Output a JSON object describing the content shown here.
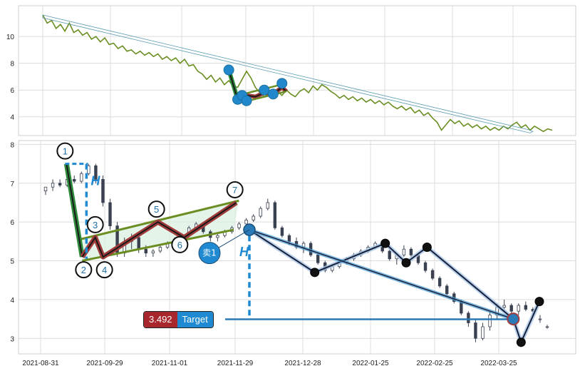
{
  "chart_data": [
    {
      "type": "line",
      "panel": "overview",
      "ylim": [
        2.6,
        12.3
      ],
      "yticks": [
        4,
        6,
        8,
        10
      ],
      "grid": true,
      "series": [
        {
          "color": "#6b8e23",
          "x": [
            0,
            2,
            4,
            6,
            8,
            10,
            12,
            14,
            16,
            18,
            20,
            22,
            24,
            26,
            28,
            30,
            32,
            34,
            36,
            38,
            40,
            42,
            44,
            46,
            48,
            50,
            52,
            54,
            56,
            58,
            60,
            62,
            64,
            66,
            68,
            70,
            72,
            74,
            76,
            78,
            80,
            82,
            84,
            86,
            88,
            90,
            92,
            94,
            96,
            98,
            100,
            102,
            104,
            106,
            108,
            110,
            112,
            114,
            116,
            118,
            120,
            122,
            124,
            126,
            128,
            130,
            132,
            134,
            136,
            138,
            140,
            142,
            144,
            146,
            148,
            150,
            152,
            154,
            156,
            158,
            160,
            162,
            164,
            166,
            168,
            170,
            172,
            174,
            176,
            178,
            180,
            182,
            184,
            186,
            188,
            190,
            192,
            194,
            196,
            198,
            200,
            202,
            204,
            206,
            208,
            210,
            212,
            214,
            216,
            218,
            220,
            222,
            224,
            226,
            228,
            230
          ],
          "y": [
            11.6,
            11.0,
            11.2,
            10.6,
            10.9,
            10.4,
            11.0,
            10.3,
            10.5,
            10.1,
            10.3,
            9.8,
            10.0,
            9.6,
            9.9,
            9.4,
            9.5,
            9.1,
            9.3,
            8.9,
            9.0,
            8.7,
            8.9,
            8.6,
            8.8,
            8.5,
            8.7,
            8.3,
            8.5,
            8.2,
            8.4,
            8.0,
            8.3,
            7.8,
            7.9,
            7.4,
            7.2,
            6.8,
            7.1,
            6.6,
            6.9,
            6.4,
            6.7,
            6.3,
            6.2,
            6.8,
            7.4,
            6.9,
            6.2,
            5.8,
            5.5,
            5.7,
            5.4,
            5.9,
            5.6,
            6.0,
            5.7,
            5.5,
            5.9,
            6.1,
            5.8,
            6.3,
            6.0,
            6.4,
            6.2,
            5.9,
            5.7,
            5.4,
            5.6,
            5.3,
            5.5,
            5.2,
            5.4,
            5.1,
            5.3,
            5.0,
            5.2,
            4.9,
            5.1,
            4.8,
            4.6,
            4.8,
            4.5,
            4.7,
            4.3,
            4.5,
            4.1,
            4.3,
            3.9,
            3.6,
            3.0,
            3.4,
            3.8,
            3.5,
            3.7,
            3.3,
            3.5,
            3.2,
            3.4,
            3.1,
            3.3,
            3.0,
            3.2,
            3.0,
            3.3,
            3.1,
            3.4,
            3.6,
            3.2,
            3.4,
            3.0,
            3.3,
            3.1,
            2.9,
            3.1,
            3.0
          ]
        }
      ],
      "annotations": [
        {
          "type": "trend_arrow",
          "from": [
            0,
            11.5
          ],
          "to": [
            220,
            2.9
          ],
          "color": "#5b9bb0"
        },
        {
          "type": "flag_pole",
          "points": [
            [
              84,
              7.5
            ],
            [
              88,
              5.3
            ]
          ],
          "color": "#1a1a1a"
        },
        {
          "type": "flag_body",
          "points": [
            [
              88,
              5.3
            ],
            [
              92,
              5.6
            ],
            [
              96,
              5.5
            ],
            [
              100,
              5.8
            ],
            [
              104,
              5.7
            ],
            [
              108,
              6.2
            ],
            [
              110,
              5.9
            ]
          ],
          "color": "#a23b3b"
        },
        {
          "type": "channel_lower",
          "points": [
            [
              88,
              5.0
            ],
            [
              110,
              5.9
            ]
          ],
          "color": "#6b8e23"
        },
        {
          "type": "channel_upper",
          "points": [
            [
              88,
              5.6
            ],
            [
              110,
              6.5
            ]
          ],
          "color": "#6b8e23"
        },
        {
          "type": "markers",
          "points": [
            [
              84,
              7.5
            ],
            [
              88,
              5.3
            ],
            [
              90,
              5.6
            ],
            [
              92,
              5.2
            ],
            [
              100,
              6.0
            ],
            [
              104,
              5.7
            ],
            [
              108,
              6.5
            ]
          ],
          "color": "#2288cc"
        }
      ]
    },
    {
      "type": "candlestick",
      "panel": "detail",
      "ylim": [
        2.6,
        8.1
      ],
      "yticks": [
        3,
        4,
        5,
        6,
        7,
        8
      ],
      "xticks": [
        "2021-08-31",
        "2021-09-29",
        "2021-11-01",
        "2021-11-29",
        "2021-12-28",
        "2022-01-25",
        "2022-02-25",
        "2022-03-25"
      ],
      "grid": true,
      "candles": [
        [
          6.8,
          6.9,
          6.7,
          6.9
        ],
        [
          6.9,
          7.1,
          6.8,
          7.0
        ],
        [
          7.0,
          7.1,
          6.9,
          6.95
        ],
        [
          6.95,
          7.2,
          6.9,
          7.1
        ],
        [
          7.1,
          7.2,
          7.0,
          7.05
        ],
        [
          7.05,
          7.3,
          7.0,
          7.25
        ],
        [
          7.25,
          7.5,
          7.2,
          7.45
        ],
        [
          7.45,
          7.5,
          7.0,
          7.1
        ],
        [
          7.1,
          7.2,
          6.4,
          6.5
        ],
        [
          6.5,
          6.6,
          5.8,
          5.9
        ],
        [
          5.9,
          6.0,
          5.1,
          5.2
        ],
        [
          5.2,
          5.6,
          5.1,
          5.5
        ],
        [
          5.5,
          5.7,
          5.3,
          5.6
        ],
        [
          5.6,
          5.7,
          5.2,
          5.3
        ],
        [
          5.3,
          5.4,
          5.1,
          5.2
        ],
        [
          5.2,
          5.3,
          5.1,
          5.25
        ],
        [
          5.25,
          5.4,
          5.2,
          5.35
        ],
        [
          5.35,
          5.5,
          5.3,
          5.45
        ],
        [
          5.45,
          5.6,
          5.4,
          5.55
        ],
        [
          5.55,
          5.7,
          5.5,
          5.65
        ],
        [
          5.65,
          5.9,
          5.6,
          5.85
        ],
        [
          5.85,
          6.0,
          5.8,
          5.95
        ],
        [
          5.95,
          6.0,
          5.7,
          5.75
        ],
        [
          5.75,
          5.8,
          5.5,
          5.6
        ],
        [
          5.6,
          5.7,
          5.5,
          5.65
        ],
        [
          5.65,
          5.8,
          5.6,
          5.75
        ],
        [
          5.75,
          5.9,
          5.7,
          5.85
        ],
        [
          5.85,
          6.0,
          5.8,
          5.95
        ],
        [
          5.95,
          6.1,
          5.9,
          6.05
        ],
        [
          6.05,
          6.2,
          6.0,
          6.15
        ],
        [
          6.15,
          6.4,
          6.1,
          6.35
        ],
        [
          6.35,
          6.6,
          6.3,
          6.5
        ],
        [
          6.5,
          6.55,
          5.8,
          5.85
        ],
        [
          5.85,
          5.9,
          5.6,
          5.65
        ],
        [
          5.65,
          5.7,
          5.4,
          5.5
        ],
        [
          5.5,
          5.6,
          5.3,
          5.35
        ],
        [
          5.35,
          5.5,
          5.2,
          5.45
        ],
        [
          5.45,
          5.5,
          5.1,
          5.15
        ],
        [
          5.15,
          5.2,
          4.9,
          4.95
        ],
        [
          4.95,
          5.0,
          4.7,
          4.75
        ],
        [
          4.75,
          4.9,
          4.7,
          4.85
        ],
        [
          4.85,
          5.0,
          4.8,
          4.95
        ],
        [
          4.95,
          5.1,
          4.9,
          5.05
        ],
        [
          5.05,
          5.2,
          5.0,
          5.15
        ],
        [
          5.15,
          5.3,
          5.1,
          5.25
        ],
        [
          5.25,
          5.4,
          5.2,
          5.35
        ],
        [
          5.35,
          5.5,
          5.3,
          5.45
        ],
        [
          5.45,
          5.5,
          5.2,
          5.25
        ],
        [
          5.25,
          5.3,
          5.0,
          5.05
        ],
        [
          5.05,
          5.2,
          4.9,
          5.15
        ],
        [
          5.15,
          5.4,
          5.1,
          5.3
        ],
        [
          5.3,
          5.35,
          5.1,
          5.15
        ],
        [
          5.15,
          5.2,
          4.9,
          4.95
        ],
        [
          4.95,
          5.0,
          4.7,
          4.75
        ],
        [
          4.75,
          4.8,
          4.5,
          4.55
        ],
        [
          4.55,
          4.6,
          4.3,
          4.35
        ],
        [
          4.35,
          4.4,
          4.1,
          4.15
        ],
        [
          4.15,
          4.2,
          3.9,
          3.95
        ],
        [
          3.95,
          4.0,
          3.6,
          3.65
        ],
        [
          3.65,
          3.7,
          3.3,
          3.4
        ],
        [
          3.4,
          3.5,
          2.9,
          3.0
        ],
        [
          3.0,
          3.4,
          2.95,
          3.3
        ],
        [
          3.3,
          3.7,
          3.2,
          3.6
        ],
        [
          3.6,
          3.9,
          3.5,
          3.8
        ],
        [
          3.8,
          4.0,
          3.7,
          3.85
        ],
        [
          3.85,
          3.9,
          3.6,
          3.7
        ],
        [
          3.7,
          3.9,
          3.6,
          3.85
        ],
        [
          3.85,
          3.95,
          3.7,
          3.75
        ],
        [
          3.75,
          3.8,
          3.6,
          3.7
        ],
        [
          3.5,
          3.6,
          3.4,
          3.5
        ],
        [
          3.3,
          3.35,
          3.25,
          3.3
        ]
      ],
      "wave_points": [
        {
          "label": "1",
          "x": 8,
          "y": 7.5
        },
        {
          "label": "2",
          "x": 14,
          "y": 5.1
        },
        {
          "label": "3",
          "x": 19,
          "y": 5.6
        },
        {
          "label": "4",
          "x": 22,
          "y": 5.1
        },
        {
          "label": "5",
          "x": 43,
          "y": 6.0
        },
        {
          "label": "6",
          "x": 53,
          "y": 5.6
        },
        {
          "label": "7",
          "x": 73,
          "y": 6.5
        }
      ],
      "path_points": [
        {
          "x": 78,
          "y": 5.8
        },
        {
          "x": 103,
          "y": 4.7
        },
        {
          "x": 130,
          "y": 5.45
        },
        {
          "x": 138,
          "y": 4.95
        },
        {
          "x": 146,
          "y": 5.35
        },
        {
          "x": 179,
          "y": 3.5
        },
        {
          "x": 182,
          "y": 2.9
        },
        {
          "x": 189,
          "y": 3.95
        }
      ],
      "h_labels": [
        "H",
        "H"
      ],
      "sell_label": "卖1",
      "target": {
        "value": "3.492",
        "label": "Target",
        "y": 3.492
      }
    }
  ]
}
